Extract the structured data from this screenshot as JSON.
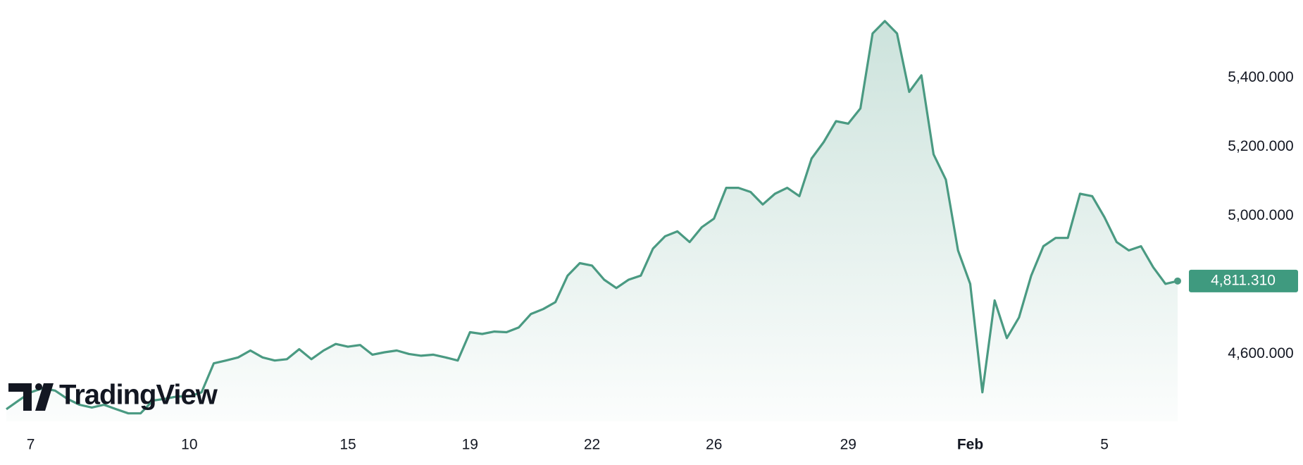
{
  "chart_data": {
    "type": "area",
    "watermark": "TradingView",
    "color": "#4a9a82",
    "categories": [
      null,
      null,
      "7",
      null,
      null,
      null,
      null,
      null,
      null,
      null,
      null,
      null,
      null,
      null,
      null,
      "10",
      null,
      null,
      null,
      null,
      null,
      null,
      null,
      null,
      null,
      null,
      null,
      null,
      "15",
      null,
      null,
      null,
      null,
      null,
      null,
      null,
      null,
      null,
      "19",
      null,
      null,
      null,
      null,
      null,
      null,
      null,
      null,
      null,
      "22",
      null,
      null,
      null,
      null,
      null,
      null,
      null,
      null,
      null,
      "26",
      null,
      null,
      null,
      null,
      null,
      null,
      null,
      null,
      null,
      null,
      "29",
      null,
      null,
      null,
      null,
      null,
      null,
      null,
      null,
      null,
      "Feb",
      null,
      null,
      null,
      null,
      null,
      null,
      null,
      null,
      null,
      null,
      "5",
      null,
      null,
      null,
      null,
      null,
      null
    ],
    "values": [
      4440,
      4465,
      4489,
      4501,
      4494,
      4470,
      4453,
      4445,
      4453,
      4440,
      4428,
      4428,
      4465,
      4470,
      4477,
      4477,
      4489,
      4573,
      4581,
      4590,
      4610,
      4590,
      4581,
      4585,
      4614,
      4585,
      4610,
      4629,
      4621,
      4626,
      4598,
      4605,
      4610,
      4600,
      4595,
      4598,
      4590,
      4581,
      4663,
      4658,
      4665,
      4663,
      4677,
      4716,
      4730,
      4750,
      4827,
      4863,
      4856,
      4815,
      4791,
      4815,
      4827,
      4905,
      4941,
      4955,
      4924,
      4967,
      4992,
      5081,
      5081,
      5069,
      5033,
      5064,
      5081,
      5057,
      5166,
      5214,
      5274,
      5267,
      5311,
      5528,
      5564,
      5528,
      5359,
      5407,
      5178,
      5105,
      4900,
      4803,
      4489,
      4755,
      4646,
      4706,
      4827,
      4912,
      4936,
      4936,
      5064,
      5057,
      4996,
      4924,
      4900,
      4912,
      4851,
      4803,
      4811.31
    ],
    "last_price": {
      "value": 4811.31,
      "label": "4,811.310"
    },
    "ylim": [
      4405,
      5625
    ],
    "yticks": [
      {
        "value": 4600,
        "label": "4,600.000"
      },
      {
        "value": 5000,
        "label": "5,000.000"
      },
      {
        "value": 5200,
        "label": "5,200.000"
      },
      {
        "value": 5400,
        "label": "5,400.000"
      }
    ]
  }
}
